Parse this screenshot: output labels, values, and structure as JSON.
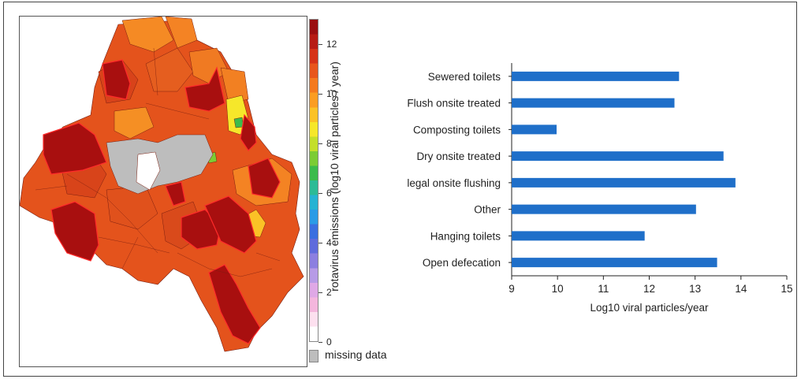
{
  "map": {
    "legend": {
      "title": "rotavirus emissions (log10 viral particles / year)",
      "ticks": [
        "0",
        "2",
        "4",
        "6",
        "8",
        "10",
        "12"
      ],
      "tick_values": [
        0,
        2,
        4,
        6,
        8,
        10,
        12
      ],
      "range": [
        0,
        13
      ],
      "missing_label": "missing data",
      "missing_color": "#bdbdbd",
      "colors": [
        "#ffffff",
        "#fde0ef",
        "#f4b6dd",
        "#dfa8e6",
        "#b79be6",
        "#8c7fe0",
        "#5f6bdc",
        "#3a6fe0",
        "#2a9be6",
        "#27b3d3",
        "#2dbb96",
        "#3cbb4c",
        "#7ccc34",
        "#c4df2a",
        "#f6e72a",
        "#fbc226",
        "#fb9d22",
        "#f47a1f",
        "#e8561c",
        "#d63318",
        "#b71c14",
        "#9a0f10"
      ]
    }
  },
  "chart_data": {
    "type": "bar",
    "orientation": "horizontal",
    "categories": [
      "Sewered toilets",
      "Flush onsite treated",
      "Composting toilets",
      "Dry onsite treated",
      "legal onsite flushing",
      "Other",
      "Hanging toilets",
      "Open defecation"
    ],
    "values": [
      12.65,
      12.55,
      9.98,
      13.62,
      13.88,
      13.02,
      11.9,
      13.48
    ],
    "xlabel": "Log10 viral particles/year",
    "ylabel": "",
    "xlim": [
      9,
      15
    ],
    "xticks": [
      "9",
      "10",
      "11",
      "12",
      "13",
      "14",
      "15"
    ],
    "color": "#1f6fc9"
  }
}
